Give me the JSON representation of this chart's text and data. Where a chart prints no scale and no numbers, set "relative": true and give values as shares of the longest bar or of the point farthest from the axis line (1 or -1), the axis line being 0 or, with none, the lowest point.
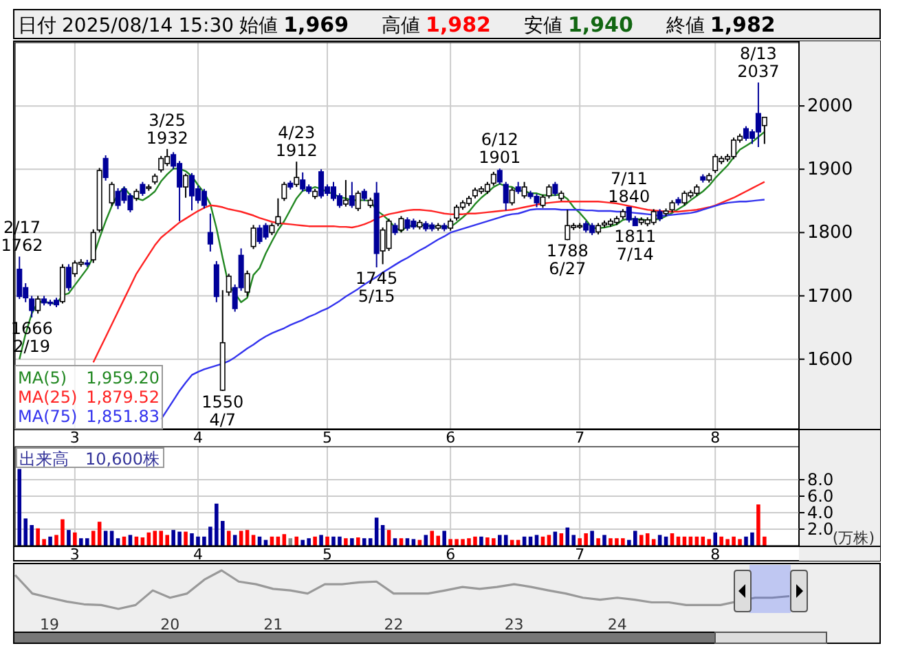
{
  "chart_data": [
    {
      "type": "candlestick",
      "title": "日付 2025/08/14 15:30 始値 1,969 高値 1,982 安値 1,940 終値 1,982",
      "categories": [
        null,
        null,
        null,
        null,
        null,
        null,
        null,
        null,
        null,
        "3",
        null,
        null,
        null,
        null,
        null,
        null,
        null,
        null,
        null,
        null,
        null,
        null,
        null,
        null,
        null,
        null,
        null,
        null,
        null,
        "4",
        null,
        null,
        null,
        null,
        null,
        null,
        null,
        null,
        null,
        null,
        null,
        null,
        null,
        null,
        null,
        null,
        null,
        null,
        null,
        null,
        "5",
        null,
        null,
        null,
        null,
        null,
        null,
        null,
        null,
        null,
        null,
        null,
        null,
        null,
        null,
        null,
        null,
        null,
        null,
        null,
        "6",
        null,
        null,
        null,
        null,
        null,
        null,
        null,
        null,
        null,
        null,
        null,
        null,
        null,
        null,
        null,
        null,
        null,
        null,
        null,
        null,
        "7",
        null,
        null,
        null,
        null,
        null,
        null,
        null,
        null,
        null,
        null,
        null,
        null,
        null,
        null,
        null,
        null,
        null,
        null,
        null,
        null,
        null,
        "8",
        null,
        null,
        null,
        null,
        null,
        null,
        null,
        null
      ],
      "ohlc": [
        [
          1742,
          1762,
          1695,
          1699
        ],
        [
          1713,
          1720,
          1690,
          1697
        ],
        [
          1695,
          1700,
          1666,
          1677
        ],
        [
          1677,
          1700,
          1672,
          1695
        ],
        [
          1695,
          1700,
          1685,
          1689
        ],
        [
          1690,
          1694,
          1684,
          1688
        ],
        [
          1693,
          1697,
          1682,
          1686
        ],
        [
          1691,
          1750,
          1688,
          1745
        ],
        [
          1745,
          1750,
          1708,
          1713
        ],
        [
          1735,
          1756,
          1730,
          1752
        ],
        [
          1750,
          1758,
          1746,
          1753
        ],
        [
          1752,
          1757,
          1746,
          1750
        ],
        [
          1757,
          1805,
          1752,
          1800
        ],
        [
          1804,
          1902,
          1800,
          1898
        ],
        [
          1917,
          1922,
          1882,
          1887
        ],
        [
          1847,
          1880,
          1842,
          1876
        ],
        [
          1865,
          1870,
          1837,
          1843
        ],
        [
          1869,
          1873,
          1846,
          1851
        ],
        [
          1858,
          1862,
          1832,
          1836
        ],
        [
          1854,
          1869,
          1850,
          1865
        ],
        [
          1876,
          1880,
          1858,
          1862
        ],
        [
          1870,
          1876,
          1866,
          1872
        ],
        [
          1880,
          1893,
          1876,
          1889
        ],
        [
          1899,
          1921,
          1895,
          1917
        ],
        [
          1909,
          1932,
          1905,
          1920
        ],
        [
          1923,
          1927,
          1900,
          1905
        ],
        [
          1909,
          1913,
          1818,
          1872
        ],
        [
          1872,
          1893,
          1855,
          1890
        ],
        [
          1890,
          1894,
          1835,
          1858
        ],
        [
          1869,
          1874,
          1846,
          1851
        ],
        [
          1865,
          1869,
          1838,
          1843
        ],
        [
          1800,
          1830,
          1770,
          1782
        ],
        [
          1749,
          1755,
          1690,
          1699
        ],
        [
          1551,
          1709,
          1550,
          1626
        ],
        [
          1706,
          1735,
          1700,
          1731
        ],
        [
          1713,
          1718,
          1675,
          1680
        ],
        [
          1764,
          1775,
          1708,
          1713
        ],
        [
          1706,
          1740,
          1699,
          1735
        ],
        [
          1778,
          1812,
          1774,
          1807
        ],
        [
          1807,
          1812,
          1782,
          1786
        ],
        [
          1811,
          1815,
          1789,
          1793
        ],
        [
          1800,
          1815,
          1796,
          1811
        ],
        [
          1814,
          1854,
          1810,
          1825
        ],
        [
          1854,
          1880,
          1850,
          1876
        ],
        [
          1878,
          1882,
          1868,
          1872
        ],
        [
          1876,
          1912,
          1872,
          1887
        ],
        [
          1883,
          1895,
          1865,
          1869
        ],
        [
          1872,
          1876,
          1861,
          1865
        ],
        [
          1857,
          1869,
          1853,
          1865
        ],
        [
          1896,
          1900,
          1854,
          1858
        ],
        [
          1872,
          1876,
          1858,
          1862
        ],
        [
          1872,
          1880,
          1850,
          1854
        ],
        [
          1858,
          1862,
          1839,
          1843
        ],
        [
          1845,
          1883,
          1841,
          1851
        ],
        [
          1858,
          1880,
          1839,
          1843
        ],
        [
          1838,
          1866,
          1834,
          1862
        ],
        [
          1865,
          1869,
          1850,
          1854
        ],
        [
          1843,
          1855,
          1839,
          1851
        ],
        [
          1862,
          1880,
          1745,
          1767
        ],
        [
          1771,
          1808,
          1750,
          1804
        ],
        [
          1775,
          1822,
          1771,
          1818
        ],
        [
          1811,
          1815,
          1796,
          1800
        ],
        [
          1804,
          1826,
          1800,
          1822
        ],
        [
          1820,
          1824,
          1803,
          1807
        ],
        [
          1818,
          1822,
          1805,
          1809
        ],
        [
          1809,
          1820,
          1805,
          1816
        ],
        [
          1814,
          1818,
          1802,
          1806
        ],
        [
          1812,
          1816,
          1802,
          1806
        ],
        [
          1807,
          1815,
          1803,
          1811
        ],
        [
          1811,
          1815,
          1802,
          1806
        ],
        [
          1807,
          1822,
          1803,
          1818
        ],
        [
          1823,
          1844,
          1819,
          1840
        ],
        [
          1840,
          1851,
          1836,
          1847
        ],
        [
          1846,
          1858,
          1842,
          1854
        ],
        [
          1858,
          1871,
          1854,
          1867
        ],
        [
          1865,
          1873,
          1861,
          1869
        ],
        [
          1865,
          1880,
          1861,
          1876
        ],
        [
          1878,
          1896,
          1874,
          1892
        ],
        [
          1898,
          1901,
          1876,
          1880
        ],
        [
          1876,
          1880,
          1835,
          1847
        ],
        [
          1847,
          1871,
          1843,
          1867
        ],
        [
          1872,
          1880,
          1861,
          1865
        ],
        [
          1858,
          1880,
          1854,
          1872
        ],
        [
          1862,
          1866,
          1853,
          1857
        ],
        [
          1857,
          1861,
          1840,
          1847
        ],
        [
          1843,
          1860,
          1839,
          1856
        ],
        [
          1858,
          1876,
          1854,
          1872
        ],
        [
          1876,
          1880,
          1858,
          1862
        ],
        [
          1854,
          1866,
          1850,
          1862
        ],
        [
          1789,
          1836,
          1788,
          1811
        ],
        [
          1808,
          1815,
          1804,
          1811
        ],
        [
          1810,
          1815,
          1806,
          1811
        ],
        [
          1814,
          1818,
          1800,
          1804
        ],
        [
          1811,
          1815,
          1796,
          1800
        ],
        [
          1801,
          1815,
          1797,
          1811
        ],
        [
          1812,
          1819,
          1808,
          1815
        ],
        [
          1813,
          1822,
          1809,
          1818
        ],
        [
          1816,
          1826,
          1812,
          1822
        ],
        [
          1825,
          1837,
          1821,
          1833
        ],
        [
          1840,
          1840,
          1816,
          1820
        ],
        [
          1822,
          1826,
          1811,
          1811
        ],
        [
          1816,
          1824,
          1812,
          1820
        ],
        [
          1814,
          1824,
          1810,
          1820
        ],
        [
          1816,
          1837,
          1812,
          1833
        ],
        [
          1833,
          1837,
          1818,
          1822
        ],
        [
          1830,
          1838,
          1826,
          1834
        ],
        [
          1836,
          1851,
          1832,
          1847
        ],
        [
          1852,
          1856,
          1843,
          1847
        ],
        [
          1847,
          1866,
          1843,
          1862
        ],
        [
          1858,
          1867,
          1854,
          1863
        ],
        [
          1862,
          1876,
          1858,
          1872
        ],
        [
          1888,
          1892,
          1879,
          1883
        ],
        [
          1883,
          1894,
          1879,
          1890
        ],
        [
          1898,
          1924,
          1894,
          1920
        ],
        [
          1912,
          1921,
          1908,
          1917
        ],
        [
          1916,
          1924,
          1912,
          1920
        ],
        [
          1920,
          1950,
          1916,
          1946
        ],
        [
          1946,
          1956,
          1942,
          1952
        ],
        [
          1964,
          1968,
          1945,
          1949
        ],
        [
          1959,
          1963,
          1940,
          1949
        ],
        [
          1988,
          2037,
          1935,
          1959
        ],
        [
          1969,
          1982,
          1940,
          1982
        ]
      ],
      "series": [
        {
          "name": "MA(5)",
          "type": "line",
          "color": "#228822",
          "values": [
            1600,
            1640,
            1672,
            1690,
            1691,
            1689,
            1687,
            1701,
            1704,
            1717,
            1730,
            1743,
            1762,
            1791,
            1818,
            1842,
            1861,
            1871,
            1859,
            1854,
            1851,
            1857,
            1865,
            1881,
            1892,
            1901,
            1901,
            1897,
            1889,
            1875,
            1863,
            1845,
            1807,
            1760,
            1716,
            1704,
            1690,
            1697,
            1733,
            1744,
            1767,
            1786,
            1804,
            1818,
            1836,
            1854,
            1866,
            1868,
            1872,
            1869,
            1864,
            1861,
            1856,
            1854,
            1851,
            1851,
            1851,
            1850,
            1835,
            1828,
            1819,
            1808,
            1802,
            1810,
            1811,
            1811,
            1812,
            1809,
            1810,
            1809,
            1809,
            1816,
            1824,
            1833,
            1845,
            1855,
            1863,
            1872,
            1877,
            1873,
            1872,
            1866,
            1866,
            1862,
            1862,
            1859,
            1859,
            1859,
            1860,
            1853,
            1840,
            1831,
            1820,
            1807,
            1807,
            1808,
            1810,
            1813,
            1820,
            1822,
            1821,
            1821,
            1819,
            1821,
            1821,
            1826,
            1831,
            1837,
            1843,
            1851,
            1858,
            1865,
            1874,
            1886,
            1896,
            1906,
            1919,
            1931,
            1937,
            1943,
            1951,
            1959
          ]
        },
        {
          "name": "MA(25)",
          "type": "line",
          "color": "#ff2222",
          "values": [
            null,
            null,
            null,
            null,
            null,
            null,
            null,
            null,
            null,
            null,
            null,
            null,
            1595,
            1615,
            1635,
            1655,
            1675,
            1695,
            1715,
            1735,
            1750,
            1765,
            1780,
            1792,
            1800,
            1808,
            1816,
            1822,
            1828,
            1834,
            1839,
            1843,
            1842,
            1840,
            1837,
            1835,
            1833,
            1830,
            1827,
            1823,
            1820,
            1817,
            1815,
            1814,
            1813,
            1812,
            1811,
            1810,
            1810,
            1810,
            1810,
            1810,
            1809,
            1809,
            1808,
            1810,
            1813,
            1817,
            1822,
            1826,
            1829,
            1831,
            1833,
            1835,
            1836,
            1836,
            1835,
            1834,
            1832,
            1830,
            1829,
            1829,
            1829,
            1830,
            1830,
            1831,
            1832,
            1833,
            1834,
            1835,
            1836,
            1838,
            1840,
            1842,
            1844,
            1846,
            1847,
            1848,
            1849,
            1849,
            1849,
            1849,
            1849,
            1849,
            1849,
            1848,
            1847,
            1846,
            1844,
            1842,
            1840,
            1838,
            1836,
            1835,
            1834,
            1833,
            1833,
            1833,
            1834,
            1835,
            1836,
            1838,
            1840,
            1843,
            1847,
            1851,
            1855,
            1860,
            1865,
            1870,
            1875,
            1880
          ]
        },
        {
          "name": "MA(75)",
          "type": "line",
          "color": "#3333ee",
          "values": [
            null,
            null,
            null,
            null,
            null,
            null,
            null,
            null,
            null,
            null,
            null,
            null,
            null,
            null,
            null,
            null,
            null,
            null,
            null,
            null,
            null,
            null,
            null,
            1505,
            1520,
            1535,
            1550,
            1563,
            1575,
            1580,
            1584,
            1587,
            1590,
            1593,
            1597,
            1603,
            1610,
            1617,
            1623,
            1630,
            1636,
            1641,
            1645,
            1649,
            1654,
            1658,
            1662,
            1667,
            1671,
            1676,
            1680,
            1686,
            1692,
            1699,
            1705,
            1711,
            1718,
            1724,
            1730,
            1737,
            1743,
            1749,
            1755,
            1760,
            1766,
            1772,
            1777,
            1783,
            1789,
            1794,
            1800,
            1803,
            1806,
            1809,
            1812,
            1815,
            1818,
            1821,
            1824,
            1827,
            1829,
            1830,
            1833,
            1836,
            1837,
            1837,
            1837,
            1837,
            1836,
            1836,
            1836,
            1836,
            1835,
            1835,
            1834,
            1834,
            1834,
            1833,
            1833,
            1832,
            1831,
            1830,
            1829,
            1828,
            1826,
            1827,
            1828,
            1829,
            1830,
            1831,
            1833,
            1836,
            1839,
            1842,
            1845,
            1847,
            1848,
            1849,
            1849,
            1850,
            1851,
            1852
          ]
        }
      ],
      "ylim": [
        1490,
        2100
      ],
      "yticks": [
        1600,
        1700,
        1800,
        1900,
        2000
      ],
      "grid": true,
      "legend": "bottom left",
      "annotations": [
        "1,959.20",
        "1,879.52",
        "1,851.83",
        {
          "text": "2/17\n1762",
          "y": 1762
        },
        {
          "text": "1666\n2/19",
          "y": 1666
        },
        {
          "text": "3/25\n1932",
          "y": 1932
        },
        {
          "text": "1550\n4/7",
          "y": 1550
        },
        {
          "text": "4/23\n1912",
          "y": 1912
        },
        {
          "text": "1745\n5/15",
          "y": 1745
        },
        {
          "text": "6/12\n1901",
          "y": 1901
        },
        {
          "text": "1788\n6/27",
          "y": 1788
        },
        {
          "text": "7/11\n1840",
          "y": 1840
        },
        {
          "text": "1811\n7/14",
          "y": 1811
        },
        {
          "text": "8/13\n2037",
          "y": 2037
        }
      ]
    },
    {
      "type": "bar",
      "title": "出来高　10,600株",
      "ylabel": "(万株)",
      "categories": [
        null,
        null,
        null,
        null,
        null,
        null,
        null,
        null,
        null,
        "3",
        null,
        null,
        null,
        null,
        null,
        null,
        null,
        null,
        null,
        null,
        null,
        null,
        null,
        null,
        null,
        null,
        null,
        null,
        null,
        "4",
        null,
        null,
        null,
        null,
        null,
        null,
        null,
        null,
        null,
        null,
        null,
        null,
        null,
        null,
        null,
        null,
        null,
        null,
        null,
        null,
        "5",
        null,
        null,
        null,
        null,
        null,
        null,
        null,
        null,
        null,
        null,
        null,
        null,
        null,
        null,
        null,
        null,
        null,
        null,
        null,
        "6",
        null,
        null,
        null,
        null,
        null,
        null,
        null,
        null,
        null,
        null,
        null,
        null,
        null,
        null,
        null,
        null,
        null,
        null,
        null,
        null,
        "7",
        null,
        null,
        null,
        null,
        null,
        null,
        null,
        null,
        null,
        null,
        null,
        null,
        null,
        null,
        null,
        null,
        null,
        null,
        null,
        null,
        null,
        "8",
        null,
        null,
        null,
        null,
        null,
        null,
        null,
        null
      ],
      "values": [
        9.3,
        3.3,
        2.5,
        2.1,
        0.8,
        1.1,
        1.3,
        3.2,
        1.9,
        1.6,
        0.9,
        0.9,
        1.8,
        2.9,
        1.8,
        1.8,
        0.9,
        1.1,
        1.3,
        1.1,
        1.0,
        1.6,
        1.8,
        1.8,
        1.3,
        1.9,
        1.7,
        1.7,
        1.5,
        1.1,
        1.1,
        2.3,
        5.1,
        3.0,
        1.8,
        1.3,
        1.8,
        1.9,
        1.3,
        1.1,
        0.7,
        1.1,
        1.1,
        1.4,
        0.9,
        1.1,
        0.7,
        0.9,
        1.1,
        1.3,
        1.1,
        1.1,
        1.1,
        0.9,
        0.9,
        1.0,
        0.9,
        0.9,
        3.4,
        2.5,
        1.9,
        0.9,
        0.9,
        0.9,
        0.8,
        0.7,
        1.3,
        1.8,
        1.2,
        1.8,
        0.8,
        0.8,
        0.8,
        0.9,
        1.1,
        1.1,
        1.0,
        0.9,
        1.3,
        1.3,
        0.7,
        0.7,
        1.1,
        1.1,
        1.3,
        1.1,
        1.3,
        1.7,
        1.5,
        2.2,
        1.3,
        0.9,
        1.5,
        1.8,
        0.9,
        1.3,
        0.9,
        0.9,
        0.9,
        0.7,
        1.8,
        1.3,
        1.5,
        0.8,
        1.3,
        1.1,
        1.5,
        1.1,
        1.1,
        1.1,
        1.1,
        1.1,
        0.8,
        1.6,
        1.1,
        0.8,
        1.1,
        0.8,
        1.1,
        1.6,
        5.0,
        1.1
      ],
      "colors": [
        "#000099",
        "#000099",
        "#000099",
        "#ff0000",
        "#ff0000",
        "#000099",
        "#ff0000",
        "#ff0000",
        "#000099",
        "#ff0000",
        "#000099",
        "#000099",
        "#ff0000",
        "#ff0000",
        "#000099",
        "#000099",
        "#000099",
        "#ff0000",
        "#000099",
        "#ff0000",
        "#ff0000",
        "#ff0000",
        "#ff0000",
        "#ff0000",
        "#ff0000",
        "#000099",
        "#000099",
        "#ff0000",
        "#000099",
        "#000099",
        "#000099",
        "#000099",
        "#000099",
        "#000099",
        "#ff0000",
        "#000099",
        "#ff0000",
        "#ff0000",
        "#ff0000",
        "#000099",
        "#000099",
        "#ff0000",
        "#ff0000",
        "#ff0000",
        "#888888",
        "#ff0000",
        "#000099",
        "#000099",
        "#ff0000",
        "#000099",
        "#ff0000",
        "#000099",
        "#000099",
        "#ff0000",
        "#000099",
        "#ff0000",
        "#000099",
        "#000099",
        "#000099",
        "#000099",
        "#ff0000",
        "#000099",
        "#ff0000",
        "#000099",
        "#000099",
        "#ff0000",
        "#000099",
        "#ff0000",
        "#ff0000",
        "#000099",
        "#ff0000",
        "#ff0000",
        "#ff0000",
        "#ff0000",
        "#ff0000",
        "#000099",
        "#ff0000",
        "#ff0000",
        "#000099",
        "#000099",
        "#ff0000",
        "#ff0000",
        "#000099",
        "#000099",
        "#000099",
        "#ff0000",
        "#ff0000",
        "#000099",
        "#ff0000",
        "#000099",
        "#000099",
        "#ff0000",
        "#ff0000",
        "#000099",
        "#ff0000",
        "#000099",
        "#ff0000",
        "#ff0000",
        "#ff0000",
        "#000099",
        "#000099",
        "#ff0000",
        "#ff0000",
        "#ff0000",
        "#000099",
        "#000099",
        "#ff0000",
        "#ff0000",
        "#ff0000",
        "#ff0000",
        "#ff0000",
        "#ff0000",
        "#ff0000",
        "#000099",
        "#ff0000",
        "#ff0000",
        "#ff0000",
        "#ff0000",
        "#000099",
        "#000099",
        "#ff0000",
        "#ff0000"
      ],
      "ylim": [
        0,
        12
      ],
      "yticks": [
        {
          "value": 2,
          "label": "2.0"
        },
        {
          "value": 4,
          "label": "4.0"
        },
        {
          "value": 6,
          "label": "6.0"
        },
        {
          "value": 8,
          "label": "8.0"
        }
      ],
      "grid": true
    },
    {
      "type": "line",
      "relative": true,
      "categories": [
        null,
        null,
        "19",
        null,
        null,
        null,
        null,
        null,
        null,
        "20",
        null,
        null,
        null,
        null,
        null,
        "21",
        null,
        null,
        null,
        null,
        null,
        null,
        "22",
        null,
        null,
        null,
        null,
        null,
        null,
        "23",
        null,
        null,
        null,
        null,
        null,
        "24",
        null,
        null,
        null,
        null,
        null,
        null,
        null,
        null,
        null,
        null
      ],
      "series": [
        {
          "color": "#999999",
          "values": [
            0.88,
            0.4,
            0.29,
            0.19,
            0.12,
            0.1,
            0,
            0.1,
            0.48,
            0.29,
            0.4,
            0.76,
            1.0,
            0.71,
            0.64,
            0.52,
            0.48,
            0.4,
            0.64,
            0.64,
            0.69,
            0.71,
            0.4,
            0.4,
            0.4,
            0.48,
            0.57,
            0.52,
            0.57,
            0.64,
            0.57,
            0.48,
            0.4,
            0.29,
            0.24,
            0.29,
            0.24,
            0.17,
            0.17,
            0.1,
            0.1,
            0.1,
            null,
            0.29,
            0.29,
            0.33
          ]
        }
      ]
    }
  ]
}
